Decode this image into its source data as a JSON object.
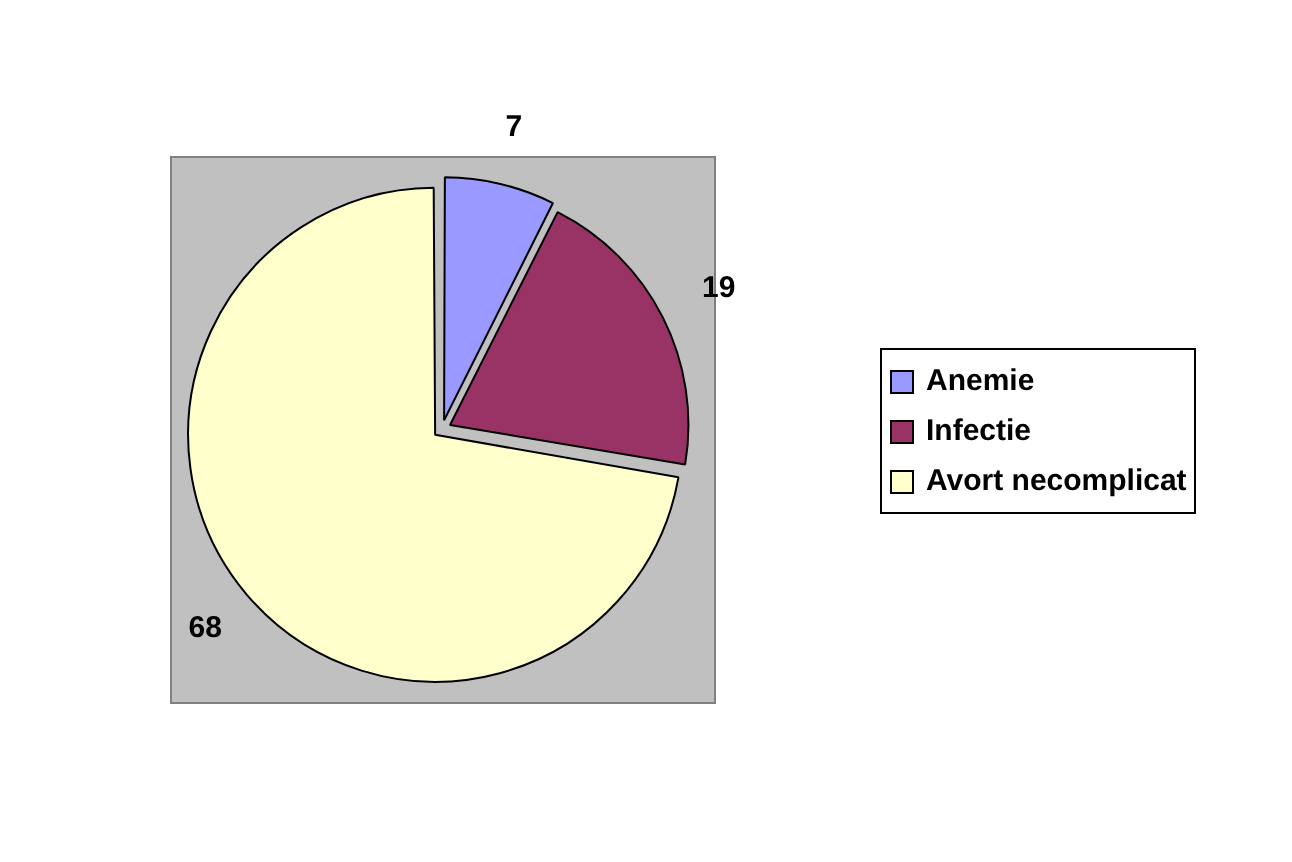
{
  "chart_data": {
    "type": "pie",
    "categories": [
      "Anemie",
      "Infectie",
      "Avort necomplicat"
    ],
    "values": [
      7,
      19,
      68
    ],
    "colors": [
      "#9999ff",
      "#993366",
      "#ffffcc"
    ],
    "data_labels": true,
    "legend": "right"
  }
}
